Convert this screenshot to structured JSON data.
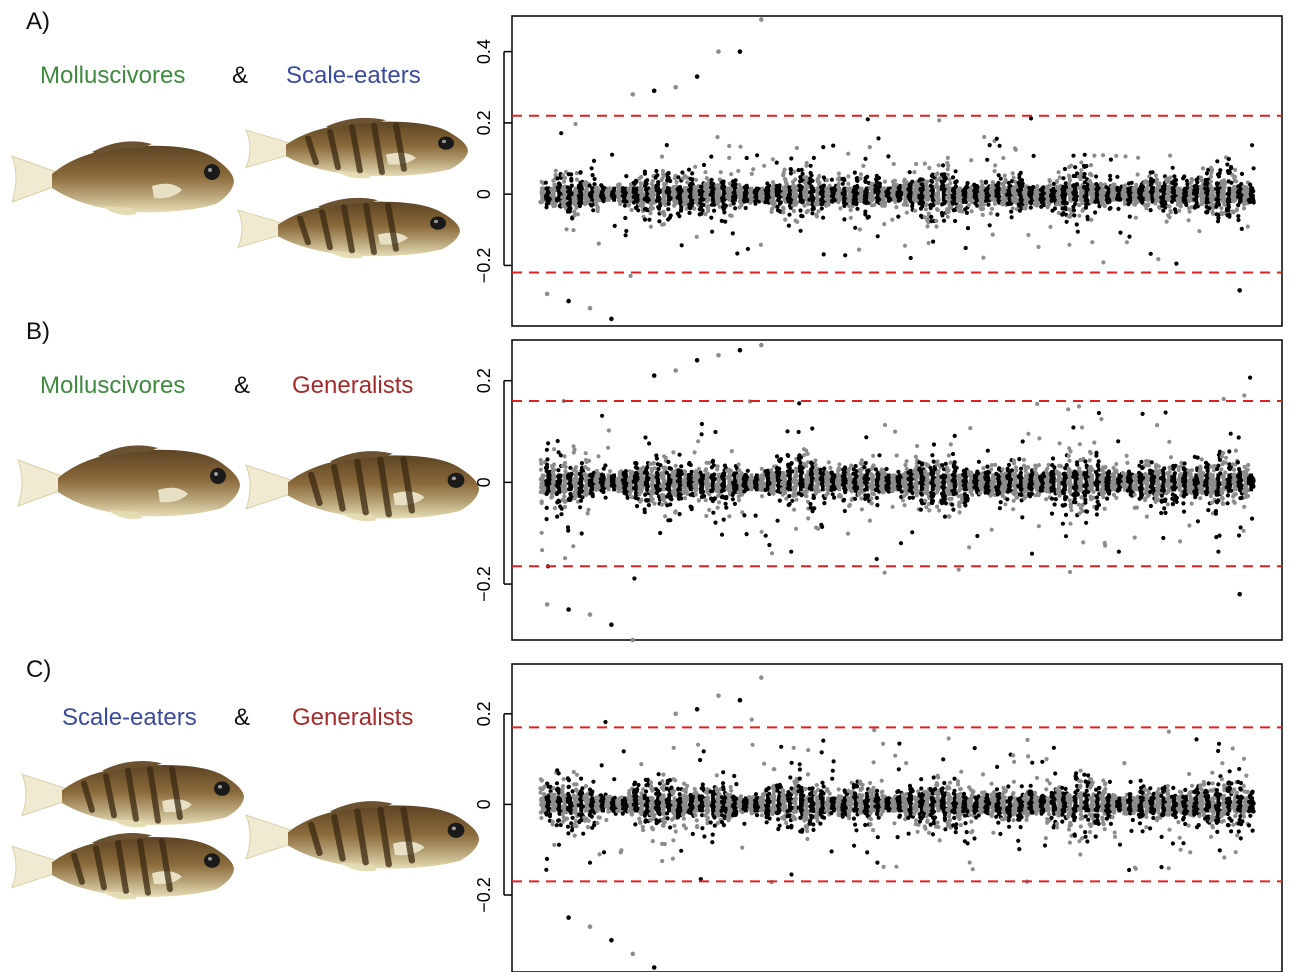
{
  "panels": [
    {
      "letter": "A)",
      "group_left": "Molluscivores",
      "amp": "&",
      "group_right": "Scale-eaters",
      "left_color": "#3f8a3f",
      "right_color": "#3a4aa0",
      "fish": [
        "molluscivore",
        "scale-eater",
        "scale-eater"
      ]
    },
    {
      "letter": "B)",
      "group_left": "Molluscivores",
      "amp": "&",
      "group_right": "Generalists",
      "left_color": "#3f8a3f",
      "right_color": "#a52a2a",
      "fish": [
        "molluscivore",
        "generalist"
      ]
    },
    {
      "letter": "C)",
      "group_left": "Scale-eaters",
      "amp": "&",
      "group_right": "Generalists",
      "left_color": "#3a4aa0",
      "right_color": "#a52a2a",
      "fish": [
        "scale-eater",
        "scale-eater",
        "generalist"
      ]
    }
  ],
  "colors": {
    "point_black": "#000000",
    "point_gray": "#8c8c8c",
    "threshold": "#e02020",
    "fish_body": "#8a6a3a",
    "fish_belly": "#e6dcb4",
    "fish_tail": "#f0ead0"
  },
  "chart_data": [
    {
      "type": "scatter",
      "title": "",
      "xlabel": "",
      "ylabel": "",
      "ylim": [
        -0.37,
        0.5
      ],
      "yticks": [
        {
          "value": 0.4,
          "label": "0.4"
        },
        {
          "value": 0.2,
          "label": "0.2"
        },
        {
          "value": 0,
          "label": "0"
        },
        {
          "value": -0.2,
          "label": "−0.2"
        }
      ],
      "thresholds": [
        0.22,
        -0.22
      ],
      "n_columns": 130,
      "column_spread": 0.06,
      "outliers_high": [
        0.49,
        0.4,
        0.4,
        0.33,
        0.3,
        0.29,
        0.28
      ],
      "outliers_low": [
        -0.35,
        -0.32,
        -0.3,
        -0.28,
        -0.27
      ],
      "series": [
        {
          "name": "",
          "color": "#000000"
        },
        {
          "name": "",
          "color": "#8c8c8c"
        }
      ]
    },
    {
      "type": "scatter",
      "title": "",
      "xlabel": "",
      "ylabel": "",
      "ylim": [
        -0.31,
        0.28
      ],
      "yticks": [
        {
          "value": 0.2,
          "label": "0.2"
        },
        {
          "value": 0,
          "label": "0"
        },
        {
          "value": -0.2,
          "label": "−0.2"
        }
      ],
      "thresholds": [
        0.16,
        -0.165
      ],
      "n_columns": 130,
      "column_spread": 0.05,
      "outliers_high": [
        0.27,
        0.26,
        0.25,
        0.24,
        0.22,
        0.21
      ],
      "outliers_low": [
        -0.31,
        -0.28,
        -0.26,
        -0.25,
        -0.24,
        -0.22
      ],
      "series": [
        {
          "name": "",
          "color": "#000000"
        },
        {
          "name": "",
          "color": "#8c8c8c"
        }
      ]
    },
    {
      "type": "scatter",
      "title": "",
      "xlabel": "",
      "ylabel": "",
      "ylim": [
        -0.37,
        0.31
      ],
      "yticks": [
        {
          "value": 0.2,
          "label": "0.2"
        },
        {
          "value": 0,
          "label": "0"
        },
        {
          "value": -0.2,
          "label": "−0.2"
        }
      ],
      "thresholds": [
        0.17,
        -0.17
      ],
      "n_columns": 130,
      "column_spread": 0.05,
      "outliers_high": [
        0.28,
        0.23,
        0.24,
        0.21,
        0.2
      ],
      "outliers_low": [
        -0.36,
        -0.33,
        -0.3,
        -0.27,
        -0.25
      ],
      "series": [
        {
          "name": "",
          "color": "#000000"
        },
        {
          "name": "",
          "color": "#8c8c8c"
        }
      ]
    }
  ]
}
